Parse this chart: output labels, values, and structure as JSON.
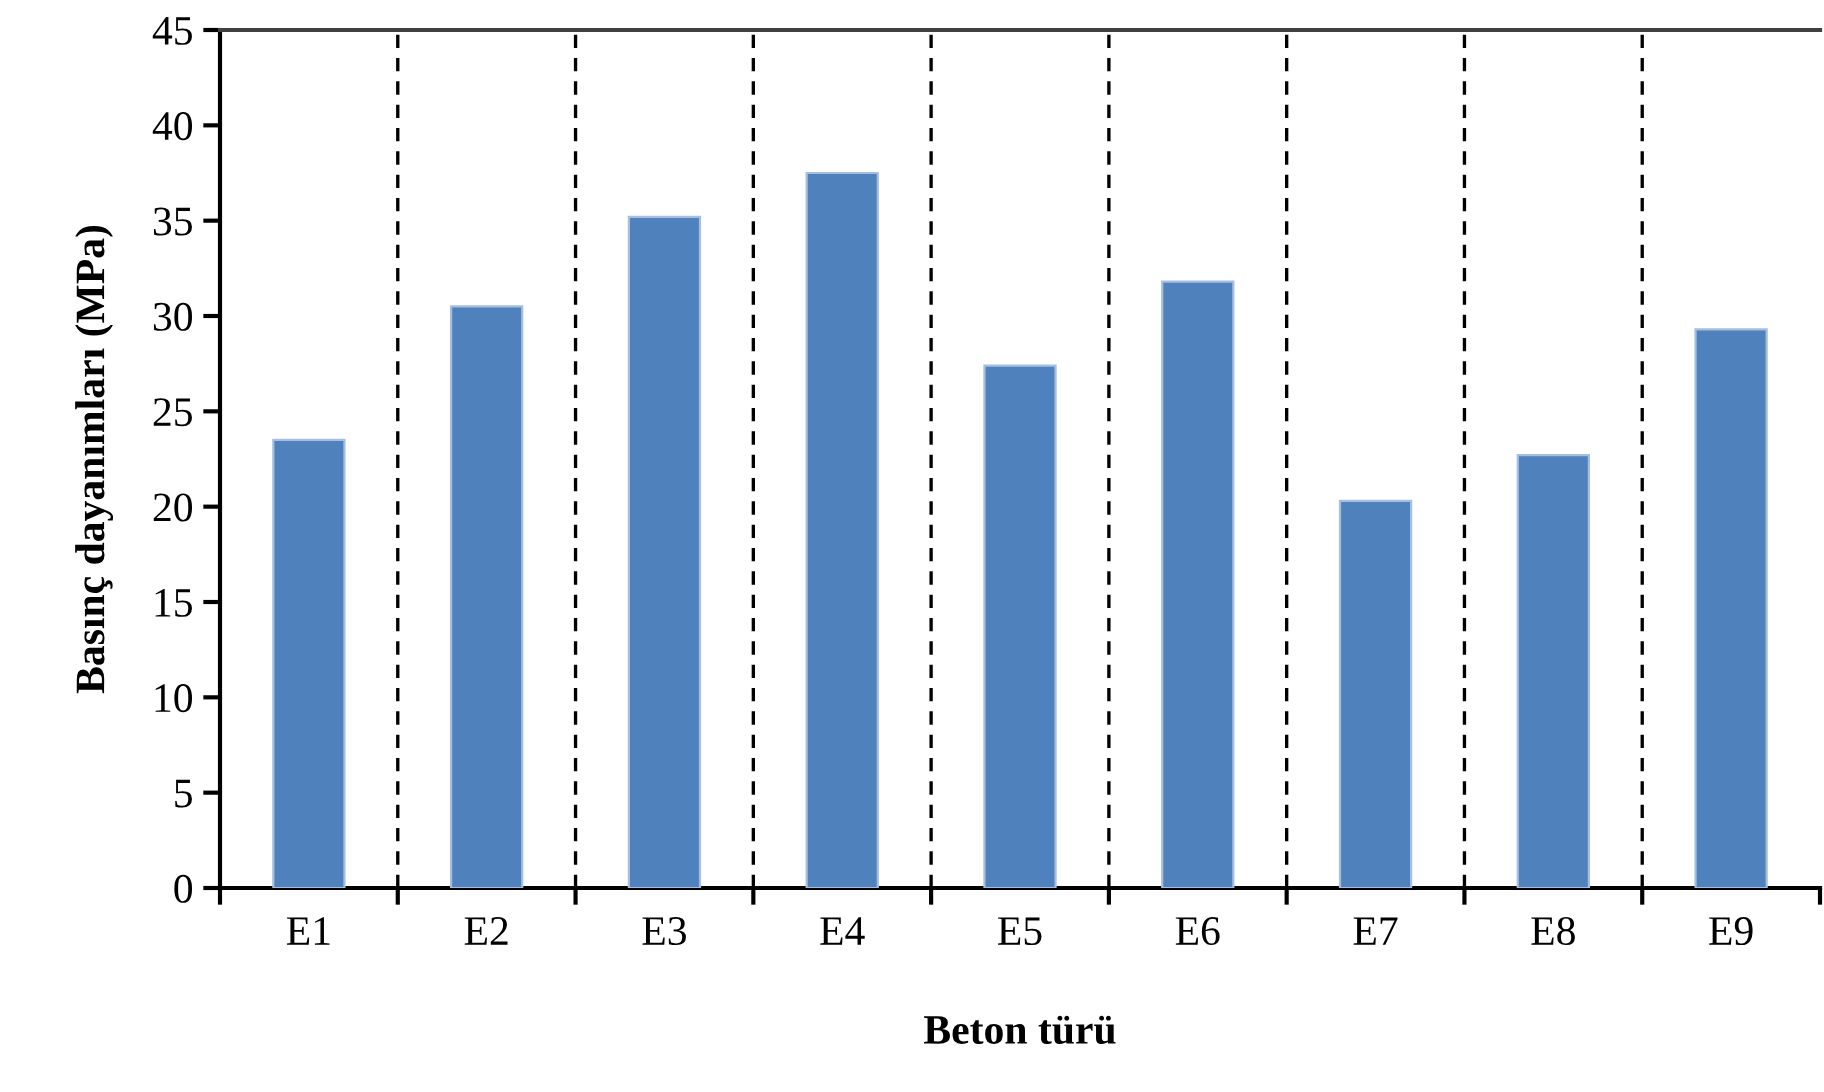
{
  "chart_data": {
    "type": "bar",
    "xlabel": "Beton türü",
    "ylabel": "Basınç dayanımları (MPa)",
    "categories": [
      "E1",
      "E2",
      "E3",
      "E4",
      "E5",
      "E6",
      "E7",
      "E8",
      "E9"
    ],
    "values": [
      23.5,
      30.5,
      35.2,
      37.5,
      27.4,
      31.8,
      20.3,
      22.7,
      29.3
    ],
    "color": "#4f81bd",
    "ylim": [
      0,
      45
    ],
    "yticks": [
      0,
      5,
      10,
      15,
      20,
      25,
      30,
      35,
      40,
      45
    ],
    "grid": "x"
  }
}
